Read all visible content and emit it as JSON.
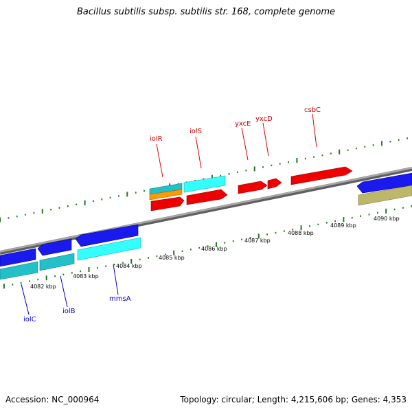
{
  "title": "Bacillus subtilis subsp. subtilis str. 168, complete genome",
  "footer": {
    "accession": "Accession: NC_000964",
    "summary": "Topology: circular; Length: 4,215,606 bp; Genes: 4,353"
  },
  "ruler": {
    "ticks": [
      "4082 kbp",
      "4083 kbp",
      "4084 kbp",
      "4085 kbp",
      "4086 kbp",
      "4087 kbp",
      "4088 kbp",
      "4089 kbp",
      "4090 kbp"
    ]
  },
  "genes": {
    "forward_labels": [
      "iolR",
      "iolS",
      "yxcE",
      "yxcD",
      "csbC"
    ],
    "reverse_labels": [
      "iolC",
      "iolB",
      "mmsA"
    ]
  },
  "colors": {
    "forward_gene": "#ff0000",
    "reverse_gene": "#1a1aff",
    "cds_cyan": "#33ffff",
    "cds_teal": "#22c0c8",
    "cds_orange": "#ff9900",
    "cds_khaki": "#bdb76b",
    "backbone": "#8a8a8a",
    "ruler": "#1d7a1d"
  }
}
